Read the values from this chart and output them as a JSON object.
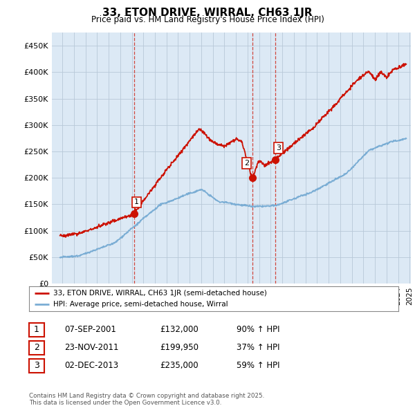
{
  "title": "33, ETON DRIVE, WIRRAL, CH63 1JR",
  "subtitle": "Price paid vs. HM Land Registry's House Price Index (HPI)",
  "hpi_color": "#7aadd4",
  "price_color": "#cc1100",
  "chart_bg": "#dce9f5",
  "ylim": [
    0,
    475000
  ],
  "yticks": [
    0,
    50000,
    100000,
    150000,
    200000,
    250000,
    300000,
    350000,
    400000,
    450000
  ],
  "ytick_labels": [
    "£0",
    "£50K",
    "£100K",
    "£150K",
    "£200K",
    "£250K",
    "£300K",
    "£350K",
    "£400K",
    "£450K"
  ],
  "vline_dates": [
    2001.68,
    2011.9,
    2013.92
  ],
  "purchase_dates": [
    2001.68,
    2011.9,
    2013.92
  ],
  "purchase_prices": [
    132000,
    199950,
    235000
  ],
  "purchase_labels": [
    "1",
    "2",
    "3"
  ],
  "legend_entries": [
    "33, ETON DRIVE, WIRRAL, CH63 1JR (semi-detached house)",
    "HPI: Average price, semi-detached house, Wirral"
  ],
  "table_rows": [
    [
      "1",
      "07-SEP-2001",
      "£132,000",
      "90% ↑ HPI"
    ],
    [
      "2",
      "23-NOV-2011",
      "£199,950",
      "37% ↑ HPI"
    ],
    [
      "3",
      "02-DEC-2013",
      "£235,000",
      "59% ↑ HPI"
    ]
  ],
  "footnote": "Contains HM Land Registry data © Crown copyright and database right 2025.\nThis data is licensed under the Open Government Licence v3.0.",
  "background_color": "#ffffff",
  "grid_color": "#b8c8d8"
}
